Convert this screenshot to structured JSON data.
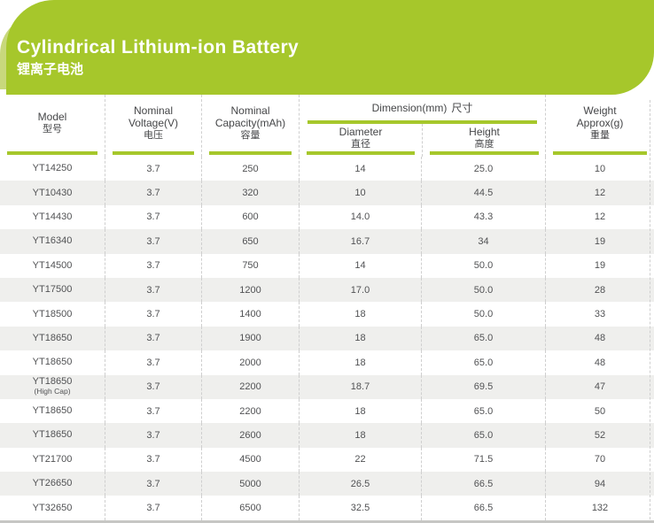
{
  "banner": {
    "title": "Cylindrical Lithium-ion Battery",
    "subtitle": "锂离子电池"
  },
  "colors": {
    "green": "#a6c72b",
    "light_green": "#c8d87c",
    "row_alt": "#efefed",
    "text": "#515254",
    "divider": "#cfcfcf",
    "bottom_bar": "#c6c6c4"
  },
  "table": {
    "headers": {
      "model": {
        "line1": "Model",
        "zh": "型号"
      },
      "voltage": {
        "line1": "Nominal",
        "line2": "Voltage(V)",
        "zh": "电压"
      },
      "capacity": {
        "line1": "Nominal",
        "line2": "Capacity(mAh)",
        "zh": "容量"
      },
      "dimension": {
        "line1": "Dimension(mm)",
        "zh": "尺寸"
      },
      "diameter": {
        "line1": "Diameter",
        "zh": "直径"
      },
      "height": {
        "line1": "Height",
        "zh": "高度"
      },
      "weight": {
        "line1": "Weight",
        "line2": "Approx(g)",
        "zh": "重量"
      }
    },
    "rows": [
      {
        "model": "YT14250",
        "voltage": "3.7",
        "capacity": "250",
        "diameter": "14",
        "height": "25.0",
        "weight": "10"
      },
      {
        "model": "YT10430",
        "voltage": "3.7",
        "capacity": "320",
        "diameter": "10",
        "height": "44.5",
        "weight": "12"
      },
      {
        "model": "YT14430",
        "voltage": "3.7",
        "capacity": "600",
        "diameter": "14.0",
        "height": "43.3",
        "weight": "12"
      },
      {
        "model": "YT16340",
        "voltage": "3.7",
        "capacity": "650",
        "diameter": "16.7",
        "height": "34",
        "weight": "19"
      },
      {
        "model": "YT14500",
        "voltage": "3.7",
        "capacity": "750",
        "diameter": "14",
        "height": "50.0",
        "weight": "19"
      },
      {
        "model": "YT17500",
        "voltage": "3.7",
        "capacity": "1200",
        "diameter": "17.0",
        "height": "50.0",
        "weight": "28"
      },
      {
        "model": "YT18500",
        "voltage": "3.7",
        "capacity": "1400",
        "diameter": "18",
        "height": "50.0",
        "weight": "33"
      },
      {
        "model": "YT18650",
        "voltage": "3.7",
        "capacity": "1900",
        "diameter": "18",
        "height": "65.0",
        "weight": "48"
      },
      {
        "model": "YT18650",
        "voltage": "3.7",
        "capacity": "2000",
        "diameter": "18",
        "height": "65.0",
        "weight": "48"
      },
      {
        "model": "YT18650",
        "model_sub": "(High Cap)",
        "voltage": "3.7",
        "capacity": "2200",
        "diameter": "18.7",
        "height": "69.5",
        "weight": "47"
      },
      {
        "model": "YT18650",
        "voltage": "3.7",
        "capacity": "2200",
        "diameter": "18",
        "height": "65.0",
        "weight": "50"
      },
      {
        "model": "YT18650",
        "voltage": "3.7",
        "capacity": "2600",
        "diameter": "18",
        "height": "65.0",
        "weight": "52"
      },
      {
        "model": "YT21700",
        "voltage": "3.7",
        "capacity": "4500",
        "diameter": "22",
        "height": "71.5",
        "weight": "70"
      },
      {
        "model": "YT26650",
        "voltage": "3.7",
        "capacity": "5000",
        "diameter": "26.5",
        "height": "66.5",
        "weight": "94"
      },
      {
        "model": "YT32650",
        "voltage": "3.7",
        "capacity": "6500",
        "diameter": "32.5",
        "height": "66.5",
        "weight": "132"
      }
    ]
  }
}
